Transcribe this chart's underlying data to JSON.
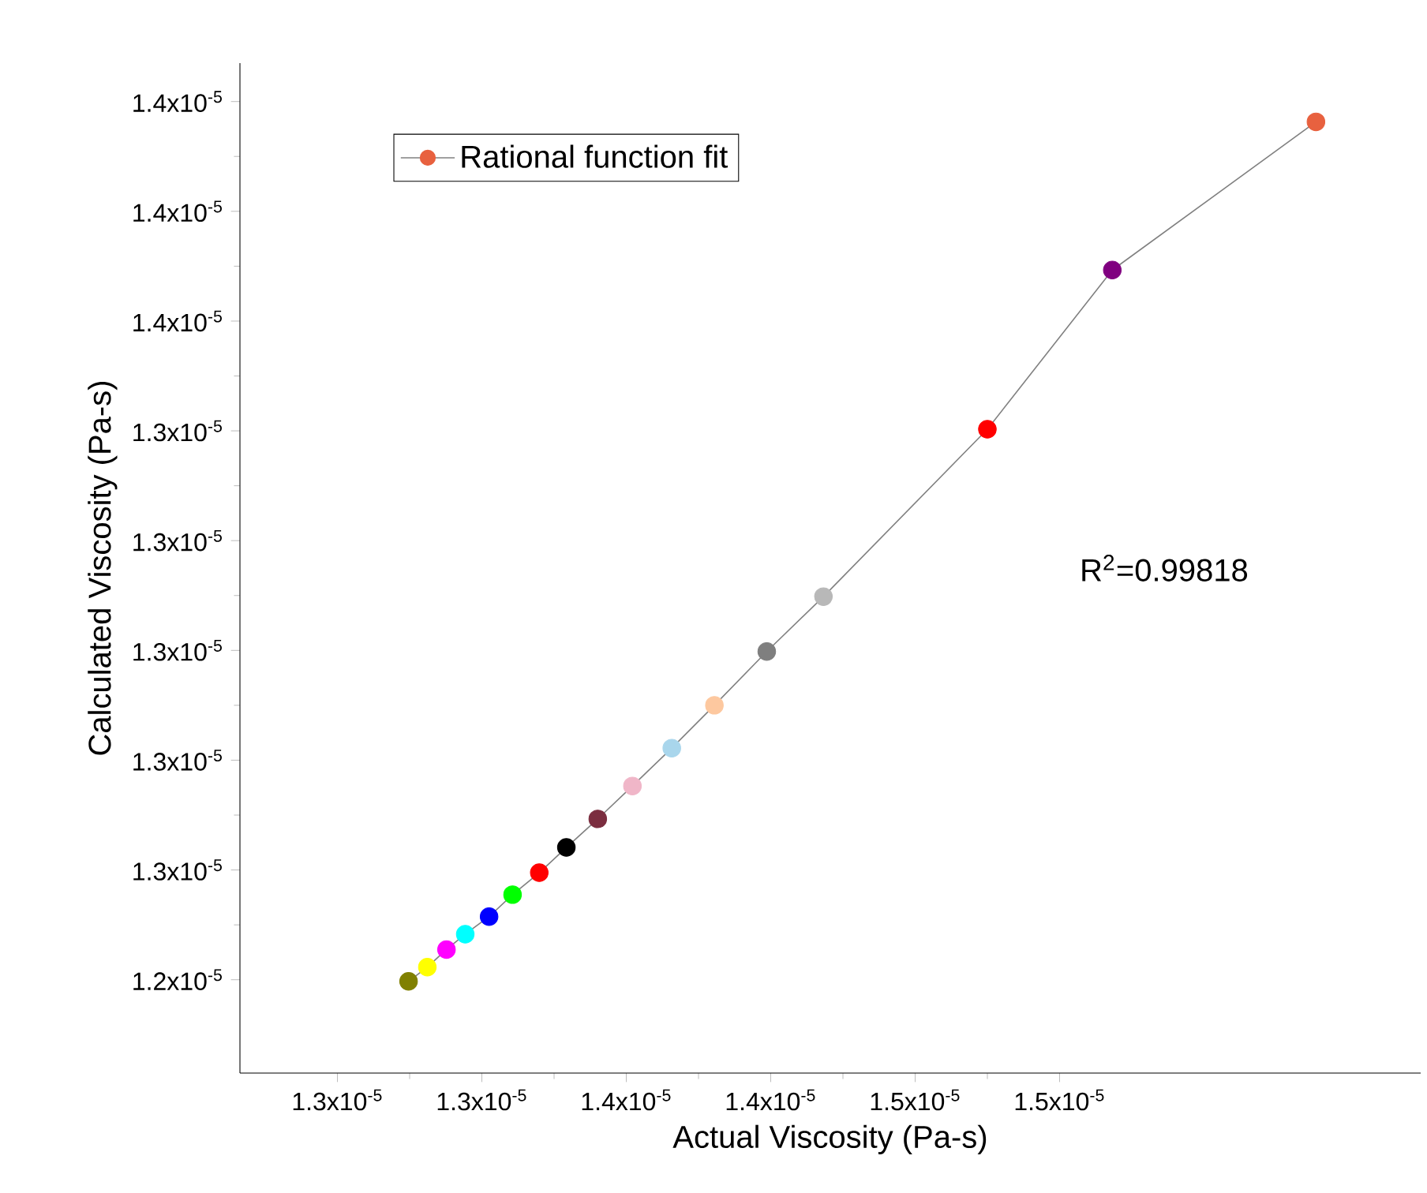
{
  "chart_data": {
    "type": "scatter",
    "xlabel": "Actual Viscosity (Pa-s)",
    "ylabel": "Calculated Viscosity (Pa-s)",
    "annotations": [
      "R$^{2}$=0.99818"
    ],
    "xlim": [
      1.273e-05,
      1.6e-05
    ],
    "ylim": [
      1.223e-05,
      1.407e-05
    ],
    "xticks": [
      {
        "value": 1.3e-05,
        "label": "1.3x10$^{-5}$"
      },
      {
        "value": 1.34e-05,
        "label": "1.3x10$^{-5}$"
      },
      {
        "value": 1.38e-05,
        "label": "1.4x10$^{-5}$"
      },
      {
        "value": 1.42e-05,
        "label": "1.4x10$^{-5}$"
      },
      {
        "value": 1.46e-05,
        "label": "1.5x10$^{-5}$"
      },
      {
        "value": 1.5e-05,
        "label": "1.5x10$^{-5}$"
      }
    ],
    "yticks": [
      {
        "value": 1.24e-05,
        "label": "1.2x10$^{-5}$"
      },
      {
        "value": 1.26e-05,
        "label": "1.3x10$^{-5}$"
      },
      {
        "value": 1.28e-05,
        "label": "1.3x10$^{-5}$"
      },
      {
        "value": 1.3e-05,
        "label": "1.3x10$^{-5}$"
      },
      {
        "value": 1.32e-05,
        "label": "1.3x10$^{-5}$"
      },
      {
        "value": 1.34e-05,
        "label": "1.3x10$^{-5}$"
      },
      {
        "value": 1.36e-05,
        "label": "1.4x10$^{-5}$"
      },
      {
        "value": 1.38e-05,
        "label": "1.4x10$^{-5}$"
      },
      {
        "value": 1.4e-05,
        "label": "1.4x10$^{-5}$"
      }
    ],
    "legend": "top left",
    "marker": "circle",
    "line_style": "solid",
    "grid": false,
    "series": [
      {
        "name": "Rational function fit",
        "type": "line",
        "color": "#808080",
        "x": [
          1.3197e-05,
          1.3249e-05,
          1.3302e-05,
          1.3354e-05,
          1.342e-05,
          1.3485e-05,
          1.3559e-05,
          1.3634e-05,
          1.3721e-05,
          1.3817e-05,
          1.3926e-05,
          1.4044e-05,
          1.4189e-05,
          1.4346e-05,
          1.48e-05,
          1.5146e-05,
          1.571e-05
        ],
        "values": [
          1.2397e-05,
          1.2423e-05,
          1.2455e-05,
          1.2483e-05,
          1.2515e-05,
          1.2555e-05,
          1.2595e-05,
          1.2641e-05,
          1.2693e-05,
          1.2753e-05,
          1.2822e-05,
          1.29e-05,
          1.2998e-05,
          1.3098e-05,
          1.3403e-05,
          1.3693e-05,
          1.3963e-05
        ],
        "colors": [
          "#808000",
          "#ffff00",
          "#ff00ff",
          "#00ffff",
          "#0000ff",
          "#00ff00",
          "#ff0000",
          "#000000",
          "#7b2d3f",
          "#f0b6c8",
          "#a9d6ec",
          "#fdc89f",
          "#7f7f7f",
          "#b8b8b8",
          "#ff0000",
          "#800080",
          "#e8613f"
        ]
      }
    ]
  }
}
